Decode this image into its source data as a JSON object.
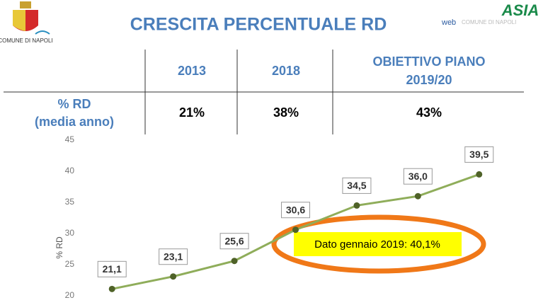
{
  "header": {
    "title": "CRESCITA PERCENTUALE RD",
    "left_logo_text": "COMUNE DI NAPOLI",
    "right_logo_web": "web",
    "right_logo_text": "COMUNE DI NAPOLI",
    "right_logo_brand": "ASIA"
  },
  "table": {
    "columns": [
      [
        "2013"
      ],
      [
        "2018"
      ],
      [
        "OBIETTIVO PIANO",
        "2019/20"
      ]
    ],
    "row_label": [
      "% RD",
      "(media anno)"
    ],
    "row": [
      "21%",
      "38%",
      "43%"
    ]
  },
  "chart_data": {
    "type": "line",
    "ylabel": "% RD",
    "categories": [
      null,
      null,
      null,
      null,
      null,
      null,
      null
    ],
    "values": [
      21.1,
      23.1,
      25.6,
      30.6,
      34.5,
      36.0,
      39.5
    ],
    "value_labels": [
      "21,1",
      "23,1",
      "25,6",
      "30,6",
      "34,5",
      "36,0",
      "39,5"
    ],
    "color": "#8fad5a",
    "marker_color": "#4f6228",
    "ylim": [
      20,
      45
    ],
    "yticks": [
      20,
      25,
      30,
      35,
      40,
      45
    ],
    "grid": false,
    "annotation": "Dato gennaio 2019: 40,1%"
  }
}
